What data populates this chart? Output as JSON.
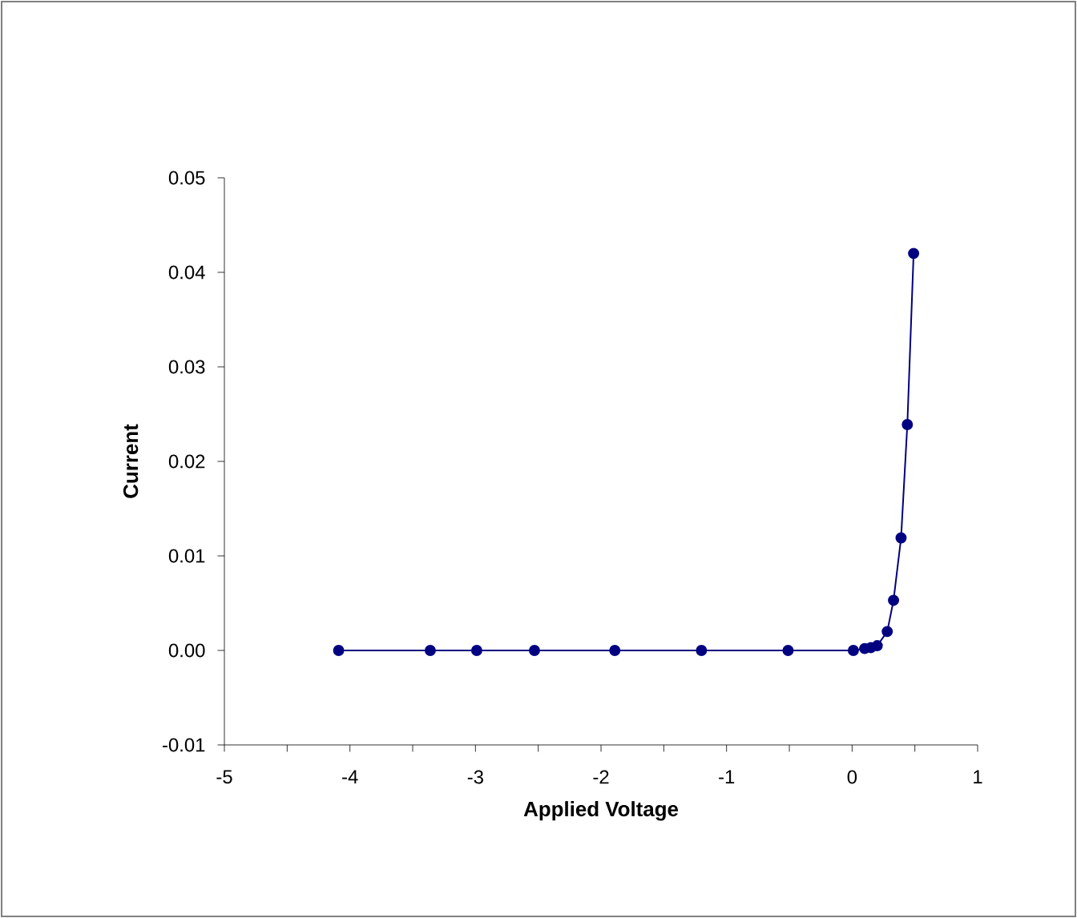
{
  "chart_data": {
    "type": "line",
    "xlabel": "Applied Voltage",
    "ylabel": "Current",
    "x": [
      -4.09,
      -3.36,
      -2.99,
      -2.53,
      -1.89,
      -1.2,
      -0.51,
      0.01,
      0.1,
      0.15,
      0.2,
      0.28,
      0.33,
      0.39,
      0.44,
      0.49
    ],
    "series": [
      {
        "color": "#000080",
        "values": [
          0,
          0,
          0,
          0,
          0,
          0,
          0,
          0,
          0.0002,
          0.0003,
          0.0005,
          0.002,
          0.0053,
          0.0119,
          0.0239,
          0.042
        ]
      }
    ],
    "xlim": [
      -5,
      1
    ],
    "ylim": [
      -0.01,
      0.05
    ],
    "xticks": [
      -5,
      {
        "value": -4.5,
        "label": null
      },
      -4,
      {
        "value": -3.5,
        "label": null
      },
      -3,
      {
        "value": -2.5,
        "label": null
      },
      -2,
      {
        "value": -1.5,
        "label": null
      },
      -1,
      {
        "value": -0.5,
        "label": null
      },
      0,
      {
        "value": 0.5,
        "label": null
      },
      1
    ],
    "yticks": [
      {
        "value": -0.01,
        "label": "-0.01"
      },
      {
        "value": 0,
        "label": "0.00"
      },
      {
        "value": 0.01,
        "label": "0.01"
      },
      {
        "value": 0.02,
        "label": "0.02"
      },
      {
        "value": 0.03,
        "label": "0.03"
      },
      {
        "value": 0.04,
        "label": "0.04"
      },
      {
        "value": 0.05,
        "label": "0.05"
      }
    ],
    "grid": false,
    "marker": "circle",
    "line_style": "solid"
  }
}
